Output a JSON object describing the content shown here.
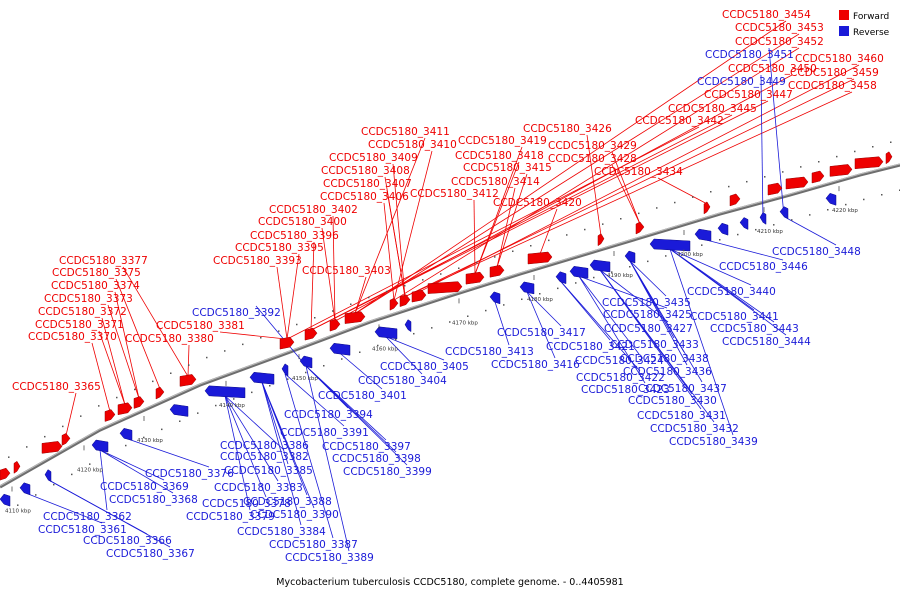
{
  "colors": {
    "forward": "#ee0000",
    "reverse": "#1a1ad8",
    "backbone": "#6e6e6e"
  },
  "legend": [
    {
      "label": "Forward",
      "color": "#ee0000"
    },
    {
      "label": "Reverse",
      "color": "#1a1ad8"
    }
  ],
  "caption": "Mycobacterium tuberculosis CCDC5180, complete genome. - 0..4405981",
  "ticks": [
    "4110 kbp",
    "4120 kbp",
    "4130 kbp",
    "4140 kbp",
    "4150 kbp",
    "4160 kbp",
    "4170 kbp",
    "4180 kbp",
    "4190 kbp",
    "4200 kbp",
    "4210 kbp",
    "4220 kbp"
  ],
  "forward_genes": [
    "CCDC5180_3454",
    "CCDC5180_3453",
    "CCDC5180_3452",
    "CCDC5180_3450",
    "CCDC5180_3447",
    "CCDC5180_3445",
    "CCDC5180_3442",
    "CCDC5180_3460",
    "CCDC5180_3459",
    "CCDC5180_3458",
    "CCDC5180_3426",
    "CCDC5180_3429",
    "CCDC5180_3428",
    "CCDC5180_3434",
    "CCDC5180_3419",
    "CCDC5180_3418",
    "CCDC5180_3415",
    "CCDC5180_3414",
    "CCDC5180_3412",
    "CCDC5180_3420",
    "CCDC5180_3411",
    "CCDC5180_3410",
    "CCDC5180_3409",
    "CCDC5180_3408",
    "CCDC5180_3407",
    "CCDC5180_3406",
    "CCDC5180_3402",
    "CCDC5180_3400",
    "CCDC5180_3396",
    "CCDC5180_3395",
    "CCDC5180_3393",
    "CCDC5180_3403",
    "CCDC5180_3377",
    "CCDC5180_3375",
    "CCDC5180_3374",
    "CCDC5180_3373",
    "CCDC5180_3372",
    "CCDC5180_3371",
    "CCDC5180_3370",
    "CCDC5180_3381",
    "CCDC5180_3380",
    "CCDC5180_3365"
  ],
  "reverse_genes": [
    "CCDC5180_3451",
    "CCDC5180_3449",
    "CCDC5180_3448",
    "CCDC5180_3446",
    "CCDC5180_3440",
    "CCDC5180_3441",
    "CCDC5180_3443",
    "CCDC5180_3444",
    "CCDC5180_3425",
    "CCDC5180_3435",
    "CCDC5180_3427",
    "CCDC5180_3433",
    "CCDC5180_3438",
    "CCDC5180_3436",
    "CCDC5180_3437",
    "CCDC5180_3430",
    "CCDC5180_3431",
    "CCDC5180_3432",
    "CCDC5180_3439",
    "CCDC5180_3417",
    "CCDC5180_3421",
    "CCDC5180_3424",
    "CCDC5180_3422",
    "CCDC5180_3423",
    "CCDC5180_3413",
    "CCDC5180_3416",
    "CCDC5180_3405",
    "CCDC5180_3404",
    "CCDC5180_3401",
    "CCDC5180_3392",
    "CCDC5180_3394",
    "CCDC5180_3391",
    "CCDC5180_3397",
    "CCDC5180_3398",
    "CCDC5180_3399",
    "CCDC5180_3386",
    "CCDC5180_3382",
    "CCDC5180_3385",
    "CCDC5180_3383",
    "CCDC5180_3388",
    "CCDC5180_3390",
    "CCDC5180_3384",
    "CCDC5180_3387",
    "CCDC5180_3389",
    "CCDC5180_3378",
    "CCDC5180_3379",
    "CCDC5180_3376",
    "CCDC5180_3369",
    "CCDC5180_3368",
    "CCDC5180_3362",
    "CCDC5180_3361",
    "CCDC5180_3366",
    "CCDC5180_3367"
  ]
}
